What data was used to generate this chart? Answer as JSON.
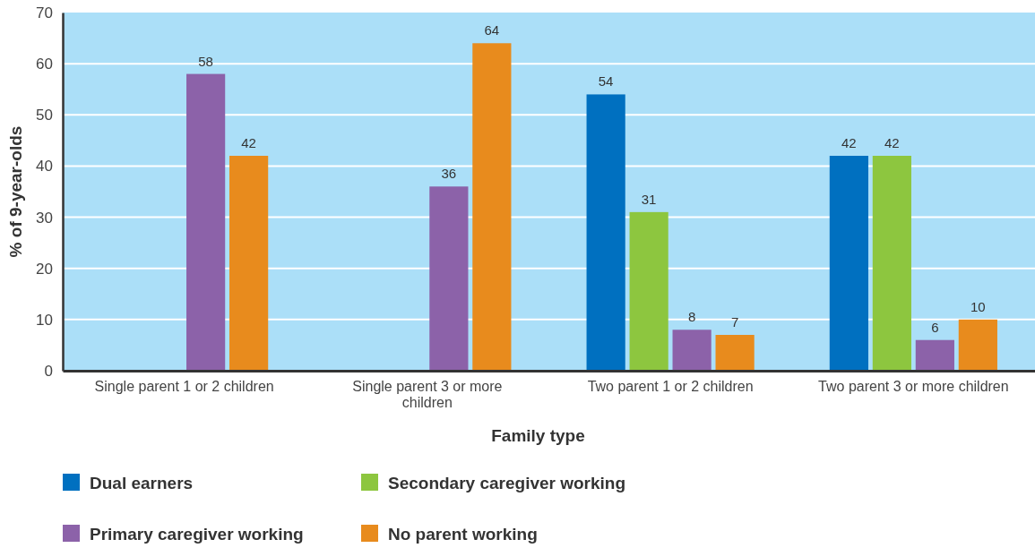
{
  "chart_data": {
    "type": "bar",
    "xlabel": "Family type",
    "ylabel": "% of 9-year-olds",
    "categories": [
      "Single parent 1 or 2 children",
      "Single parent 3 or more children",
      "Two parent 1 or 2 children",
      "Two parent 3 or more children"
    ],
    "series": [
      {
        "name": "Dual earners",
        "color": "#0070c0",
        "values": [
          null,
          null,
          54,
          42
        ]
      },
      {
        "name": "Secondary caregiver working",
        "color": "#8dc63f",
        "values": [
          null,
          null,
          31,
          42
        ]
      },
      {
        "name": "Primary caregiver working",
        "color": "#8c62a9",
        "values": [
          58,
          36,
          8,
          6
        ]
      },
      {
        "name": "No parent working",
        "color": "#e88b1d",
        "values": [
          42,
          64,
          7,
          10
        ]
      }
    ],
    "ylim": [
      0,
      70
    ],
    "yticks": [
      0,
      10,
      20,
      30,
      40,
      50,
      60,
      70
    ],
    "grid": "y",
    "legend": "bottom",
    "data_labels": true
  }
}
